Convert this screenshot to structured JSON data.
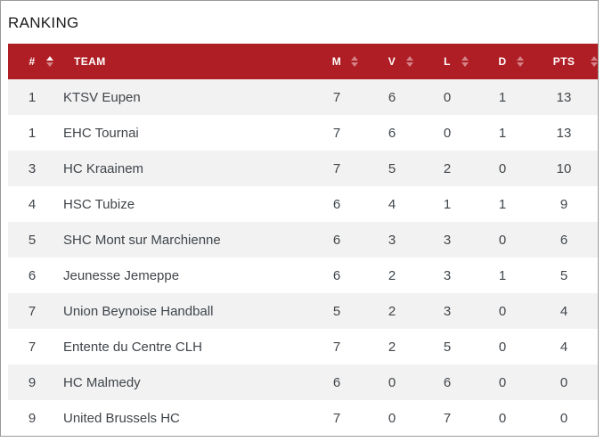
{
  "page": {
    "title": "RANKING"
  },
  "colors": {
    "header_bg": "#b01e25",
    "header_text": "#ffffff",
    "row_alt_bg": "#f2f2f2",
    "row_bg": "#ffffff",
    "cell_text": "#40454a",
    "title_text": "#1b1b1b",
    "panel_border": "#9a9a9a",
    "sort_icon_inactive": "rgba(255,255,255,0.45)",
    "sort_icon_active": "rgba(255,255,255,0.95)"
  },
  "table": {
    "sort_state": {
      "key": "rank",
      "direction": "asc"
    },
    "columns": [
      {
        "key": "rank",
        "label": "#",
        "sortable": true
      },
      {
        "key": "team",
        "label": "TEAM",
        "sortable": false
      },
      {
        "key": "m",
        "label": "M",
        "sortable": true
      },
      {
        "key": "v",
        "label": "V",
        "sortable": true
      },
      {
        "key": "l",
        "label": "L",
        "sortable": true
      },
      {
        "key": "d",
        "label": "D",
        "sortable": true
      },
      {
        "key": "pts",
        "label": "PTS",
        "sortable": true
      }
    ],
    "rows": [
      {
        "rank": "1",
        "team": "KTSV Eupen",
        "m": "7",
        "v": "6",
        "l": "0",
        "d": "1",
        "pts": "13"
      },
      {
        "rank": "1",
        "team": "EHC Tournai",
        "m": "7",
        "v": "6",
        "l": "0",
        "d": "1",
        "pts": "13"
      },
      {
        "rank": "3",
        "team": "HC Kraainem",
        "m": "7",
        "v": "5",
        "l": "2",
        "d": "0",
        "pts": "10"
      },
      {
        "rank": "4",
        "team": "HSC Tubize",
        "m": "6",
        "v": "4",
        "l": "1",
        "d": "1",
        "pts": "9"
      },
      {
        "rank": "5",
        "team": "SHC Mont sur Marchienne",
        "m": "6",
        "v": "3",
        "l": "3",
        "d": "0",
        "pts": "6"
      },
      {
        "rank": "6",
        "team": "Jeunesse Jemeppe",
        "m": "6",
        "v": "2",
        "l": "3",
        "d": "1",
        "pts": "5"
      },
      {
        "rank": "7",
        "team": "Union Beynoise Handball",
        "m": "5",
        "v": "2",
        "l": "3",
        "d": "0",
        "pts": "4"
      },
      {
        "rank": "7",
        "team": "Entente du Centre CLH",
        "m": "7",
        "v": "2",
        "l": "5",
        "d": "0",
        "pts": "4"
      },
      {
        "rank": "9",
        "team": "HC Malmedy",
        "m": "6",
        "v": "0",
        "l": "6",
        "d": "0",
        "pts": "0"
      },
      {
        "rank": "9",
        "team": "United Brussels HC",
        "m": "7",
        "v": "0",
        "l": "7",
        "d": "0",
        "pts": "0"
      }
    ]
  }
}
